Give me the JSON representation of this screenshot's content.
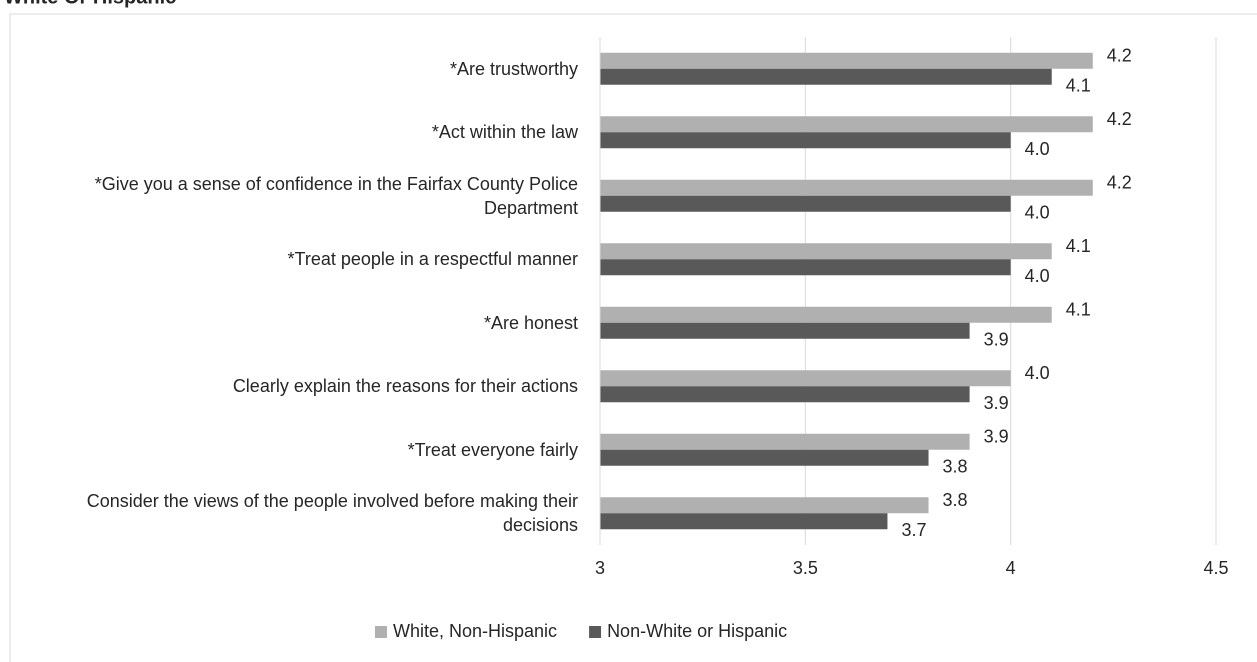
{
  "chart_data": {
    "type": "bar",
    "orientation": "horizontal",
    "title": "White Or Hispanic",
    "categories": [
      "*Are trustworthy",
      "*Act within the law",
      "*Give you a sense of confidence in the Fairfax County Police Department",
      "*Treat people in a respectful manner",
      "*Are honest",
      "Clearly explain the reasons for their actions",
      "*Treat everyone fairly",
      "Consider the views of the people involved before making their decisions"
    ],
    "series": [
      {
        "name": "White, Non-Hispanic",
        "color": "#b0b0b0",
        "values": [
          4.2,
          4.2,
          4.2,
          4.1,
          4.1,
          4.0,
          3.9,
          3.8
        ],
        "value_labels": [
          "4.2",
          "4.2",
          "4.2",
          "4.1",
          "4.1",
          "4.0",
          "3.9",
          "3.8"
        ]
      },
      {
        "name": "Non-White or Hispanic",
        "color": "#595959",
        "values": [
          4.1,
          4.0,
          4.0,
          4.0,
          3.9,
          3.9,
          3.8,
          3.7
        ],
        "value_labels": [
          "4.1",
          "4.0",
          "4.0",
          "4.0",
          "3.9",
          "3.9",
          "3.8",
          "3.7"
        ]
      }
    ],
    "xlim": [
      3,
      4.5
    ],
    "xticks": [
      3,
      3.5,
      4,
      4.5
    ],
    "grid": true,
    "legend": "bottom"
  }
}
